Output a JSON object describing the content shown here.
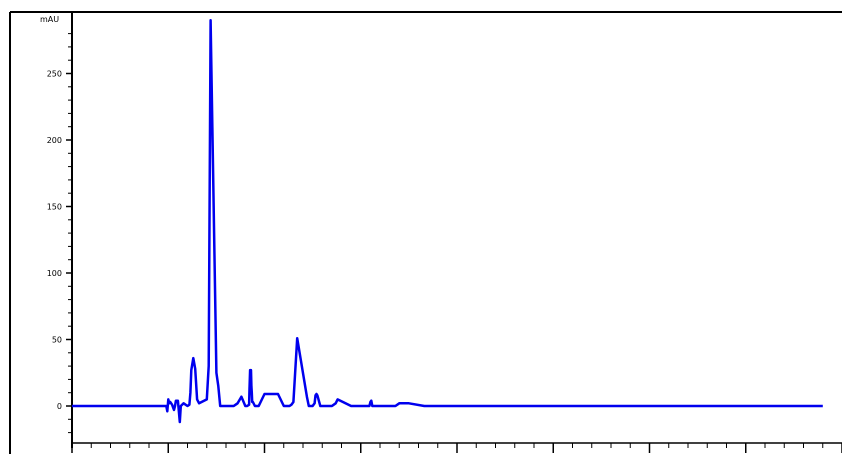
{
  "chart_data": {
    "type": "line",
    "title": "",
    "xlabel": "",
    "ylabel": "mAU",
    "ylim": [
      -28,
      295
    ],
    "y_ticks": [
      0,
      50,
      100,
      150,
      200,
      250
    ],
    "grid": false,
    "line_color": "#0000ee",
    "series": [
      {
        "x": [
          0.0,
          0.2,
          0.49,
          0.495,
          0.5,
          0.505,
          0.51,
          0.52,
          0.53,
          0.535,
          0.54,
          0.55,
          0.56,
          0.565,
          0.58,
          0.6,
          0.61,
          0.615,
          0.62,
          0.63,
          0.64,
          0.65,
          0.66,
          0.7,
          0.71,
          0.72,
          0.75,
          0.76,
          0.77,
          0.78,
          0.785,
          0.79,
          0.8,
          0.81,
          0.82,
          0.83,
          0.84,
          0.85,
          0.86,
          0.88,
          0.9,
          0.91,
          0.92,
          0.922,
          0.925,
          0.93,
          0.932,
          0.934,
          0.936,
          0.94,
          0.95,
          0.97,
          1.0,
          1.07,
          1.1,
          1.12,
          1.13,
          1.14,
          1.15,
          1.17,
          1.22,
          1.23,
          1.24,
          1.25,
          1.26,
          1.265,
          1.27,
          1.275,
          1.29,
          1.3,
          1.32,
          1.33,
          1.34,
          1.35,
          1.37,
          1.38,
          1.45,
          1.51,
          1.52,
          1.53,
          1.54,
          1.545,
          1.55,
          1.555,
          1.56,
          1.58,
          1.6,
          1.65,
          1.66,
          1.67,
          1.68,
          1.7,
          1.75,
          1.83,
          1.84,
          1.85,
          1.86,
          1.87,
          1.89,
          2.0,
          2.2,
          2.21,
          2.22,
          2.23,
          2.25,
          2.5,
          3.0,
          3.9
        ],
        "y": [
          0,
          0,
          0,
          -4,
          5,
          2,
          3,
          1,
          -3,
          0,
          4,
          4,
          -12,
          0,
          2,
          0,
          1,
          10,
          27,
          36,
          28,
          5,
          2,
          5,
          30,
          290,
          25,
          15,
          0,
          0,
          0,
          0,
          0,
          0,
          0,
          0,
          0,
          1,
          2,
          7,
          0,
          0,
          1,
          13,
          27,
          27,
          15,
          10,
          3,
          3,
          0,
          0,
          9,
          9,
          0,
          0,
          0,
          1,
          3,
          51,
          7,
          0,
          0,
          0,
          2,
          8,
          9,
          8,
          0,
          0,
          0,
          0,
          0,
          0,
          2,
          5,
          0,
          0,
          0,
          0,
          0,
          0,
          3,
          4,
          0,
          0,
          0,
          0,
          0,
          0,
          0,
          2,
          2,
          0,
          0,
          0,
          0,
          0,
          0,
          0,
          0,
          0,
          0,
          0,
          0,
          0,
          0,
          0
        ]
      }
    ]
  }
}
